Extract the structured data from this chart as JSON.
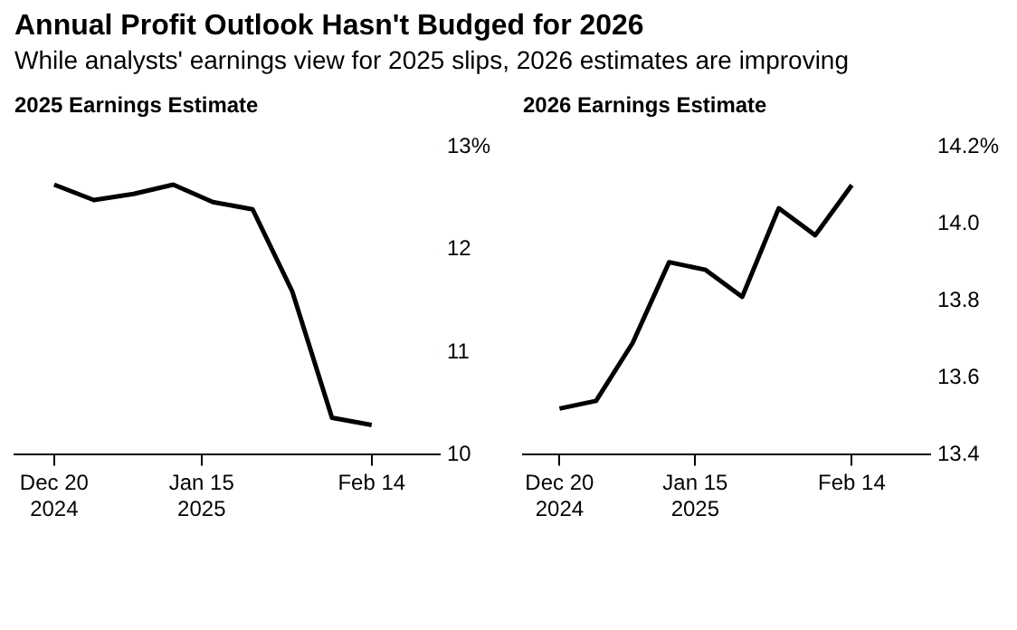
{
  "chart_data": [
    {
      "type": "line",
      "title": "Annual Profit Outlook Hasn't Budged for 2026",
      "subtitle": "While analysts' earnings view for 2025 slips, 2026 estimates are improving",
      "ylabel": "2025 Earnings Estimate",
      "x": [
        "2024-12-20",
        "2024-12-27",
        "2025-01-03",
        "2025-01-10",
        "2025-01-17",
        "2025-01-24",
        "2025-01-31",
        "2025-02-07",
        "2025-02-14"
      ],
      "series": [
        {
          "color": "#000000",
          "values": [
            12.63,
            12.48,
            12.54,
            12.63,
            12.46,
            12.39,
            11.59,
            10.36,
            10.29
          ]
        }
      ],
      "xlim": [
        "2024-12-13",
        "2025-02-26"
      ],
      "xticks": [
        {
          "value": "2024-12-20",
          "label": "Dec 20\n2024"
        },
        {
          "value": "2025-01-15",
          "label": "Jan 15\n2025"
        },
        {
          "value": "2025-02-14",
          "label": "Feb 14"
        }
      ],
      "ylim": [
        10,
        13
      ],
      "yticks": [
        10,
        11,
        12,
        {
          "value": 13,
          "label": "13%"
        }
      ],
      "grid": false,
      "legend": false,
      "marker": "none",
      "line_style": "solid"
    },
    {
      "type": "line",
      "ylabel": "2026 Earnings Estimate",
      "x": [
        "2024-12-20",
        "2024-12-27",
        "2025-01-03",
        "2025-01-10",
        "2025-01-17",
        "2025-01-24",
        "2025-01-31",
        "2025-02-07",
        "2025-02-14"
      ],
      "series": [
        {
          "color": "#000000",
          "values": [
            13.52,
            13.54,
            13.69,
            13.9,
            13.88,
            13.81,
            14.04,
            13.97,
            14.1
          ]
        }
      ],
      "xlim": [
        "2024-12-13",
        "2025-03-01"
      ],
      "xticks": [
        {
          "value": "2024-12-20",
          "label": "Dec 20\n2024"
        },
        {
          "value": "2025-01-15",
          "label": "Jan 15\n2025"
        },
        {
          "value": "2025-02-14",
          "label": "Feb 14"
        }
      ],
      "ylim": [
        13.4,
        14.2
      ],
      "yticks": [
        {
          "value": 13.4,
          "label": "13.4"
        },
        {
          "value": 13.6,
          "label": "13.6"
        },
        {
          "value": 13.8,
          "label": "13.8"
        },
        {
          "value": 14.0,
          "label": "14.0"
        },
        {
          "value": 14.2,
          "label": "14.2%"
        }
      ],
      "grid": false,
      "legend": false,
      "marker": "none",
      "line_style": "solid"
    }
  ]
}
